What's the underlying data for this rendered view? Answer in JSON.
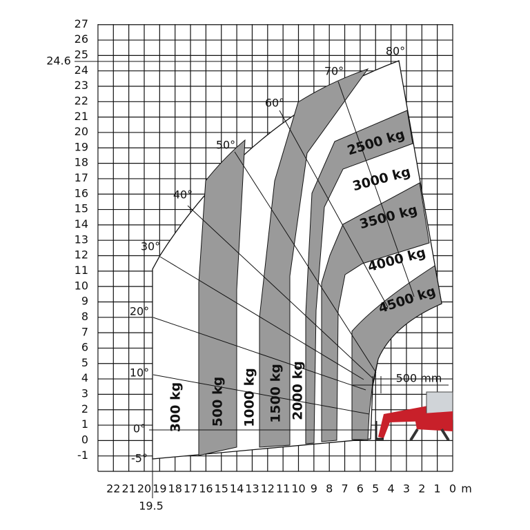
{
  "y_axis": {
    "ticks": [
      -1,
      0,
      1,
      2,
      3,
      4,
      5,
      6,
      7,
      8,
      9,
      10,
      11,
      12,
      13,
      14,
      15,
      16,
      17,
      18,
      19,
      20,
      21,
      22,
      23,
      24,
      25,
      26,
      27
    ],
    "max_height": 24.6
  },
  "x_axis": {
    "ticks": [
      22,
      21,
      20,
      19,
      18,
      17,
      16,
      15,
      14,
      13,
      12,
      11,
      10,
      9,
      8,
      7,
      6,
      5,
      4,
      3,
      2,
      1,
      0
    ],
    "unit": "m",
    "max_reach": 19.5
  },
  "angles": [
    "80°",
    "70°",
    "60°",
    "50°",
    "40°",
    "30°",
    "20°",
    "10°",
    "0°",
    "-5°"
  ],
  "loads_vertical": [
    "300 kg",
    "500 kg",
    "1000 kg",
    "1500 kg",
    "2000 kg"
  ],
  "loads_curved": [
    "2500 kg",
    "3000 kg",
    "3500 kg",
    "4000 kg",
    "4500 kg"
  ],
  "dimension": "500 mm"
}
